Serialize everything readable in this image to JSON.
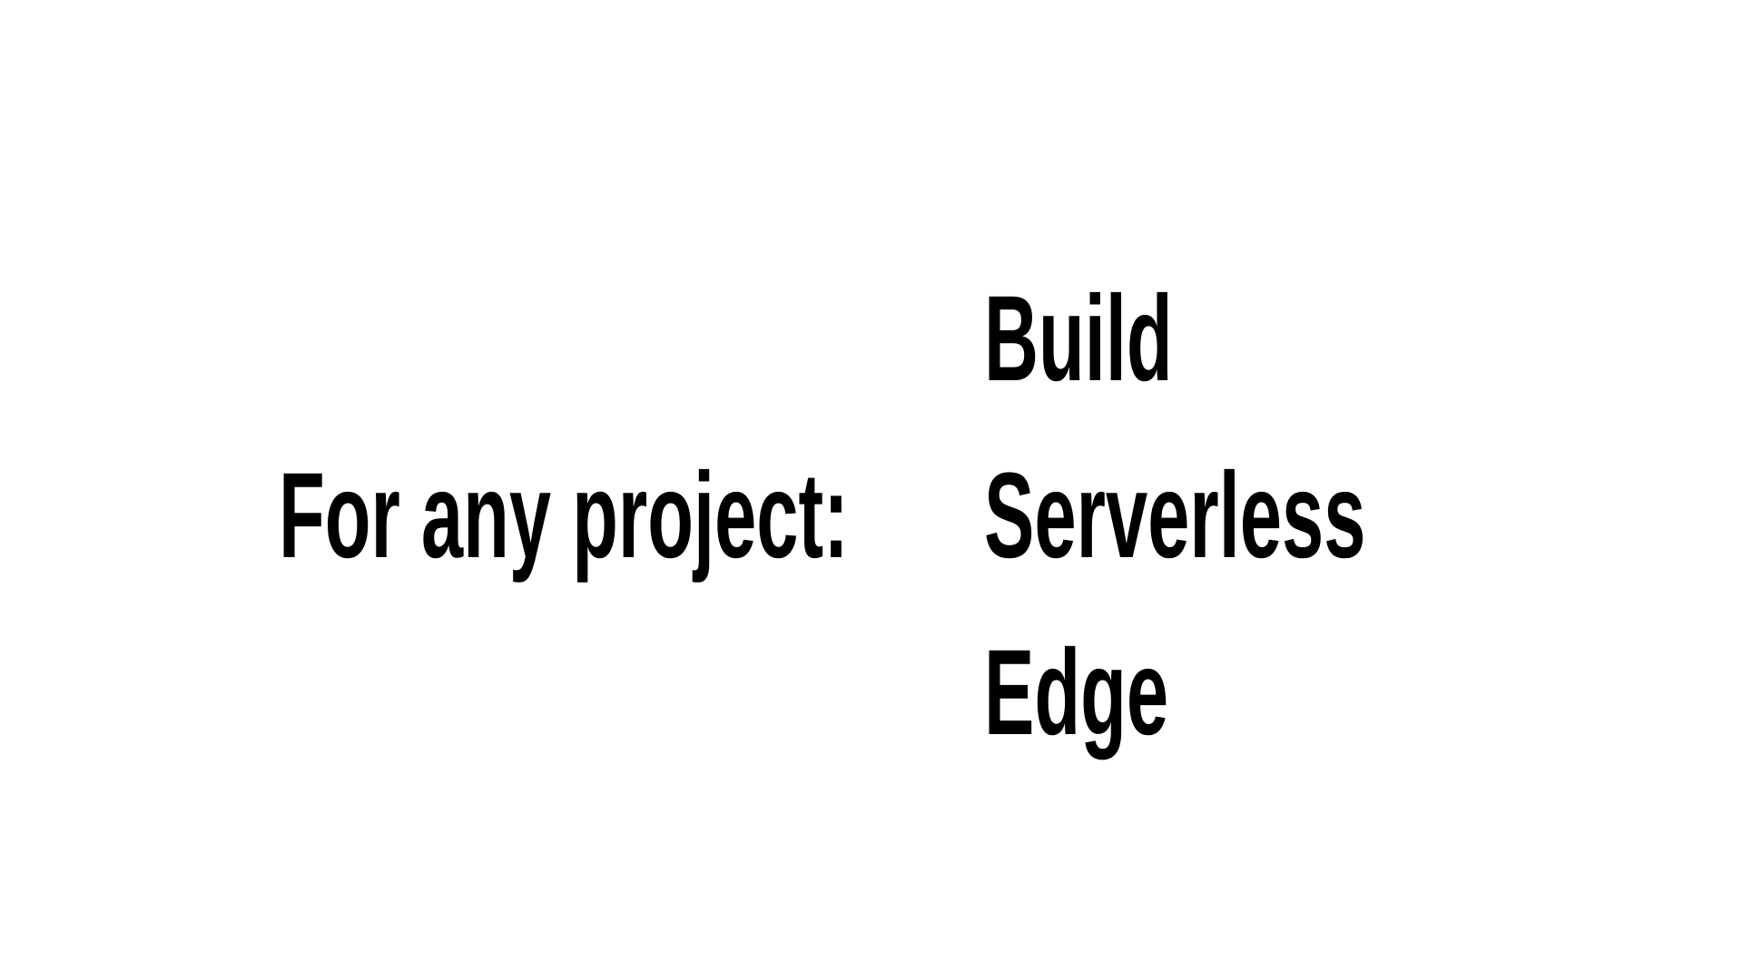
{
  "slide": {
    "lead_text": "For any project:",
    "options": [
      "Build",
      "Serverless",
      "Edge"
    ]
  },
  "colors": {
    "background": "#ffffff",
    "text": "#000000"
  }
}
